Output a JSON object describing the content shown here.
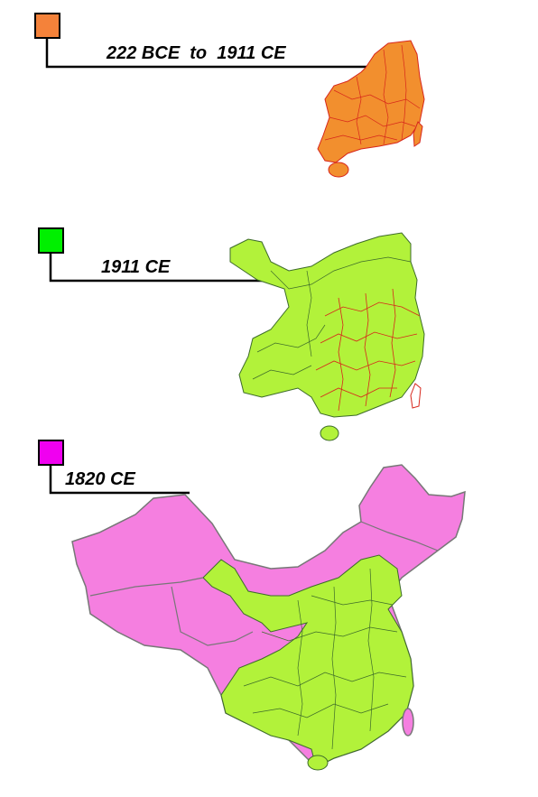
{
  "legend": {
    "items": [
      {
        "label": "222 BCE  to  1911 CE"
      },
      {
        "label": "1911 CE"
      },
      {
        "label": "1820 CE"
      }
    ]
  }
}
